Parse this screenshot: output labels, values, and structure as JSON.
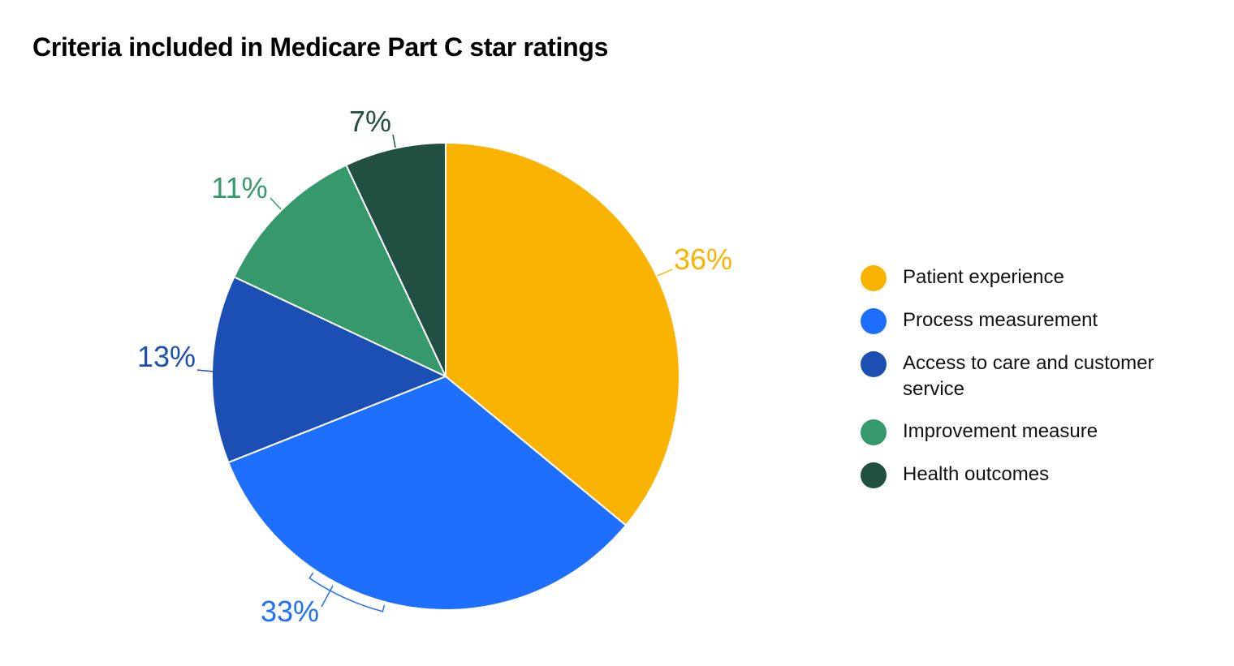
{
  "title": "Criteria included in Medicare Part C star ratings",
  "chart_data": {
    "type": "pie",
    "title": "Criteria included in Medicare Part C star ratings",
    "slices": [
      {
        "name": "Patient experience",
        "value": 36,
        "label": "36%",
        "color": "#F9B300"
      },
      {
        "name": "Process measurement",
        "value": 33,
        "label": "33%",
        "color": "#1F6FFF"
      },
      {
        "name": "Access to care and customer service",
        "value": 13,
        "label": "13%",
        "color": "#1B4FB4"
      },
      {
        "name": "Improvement measure",
        "value": 11,
        "label": "11%",
        "color": "#35996B"
      },
      {
        "name": "Health outcomes",
        "value": 7,
        "label": "7%",
        "color": "#214F42"
      }
    ],
    "legend_position": "right"
  }
}
